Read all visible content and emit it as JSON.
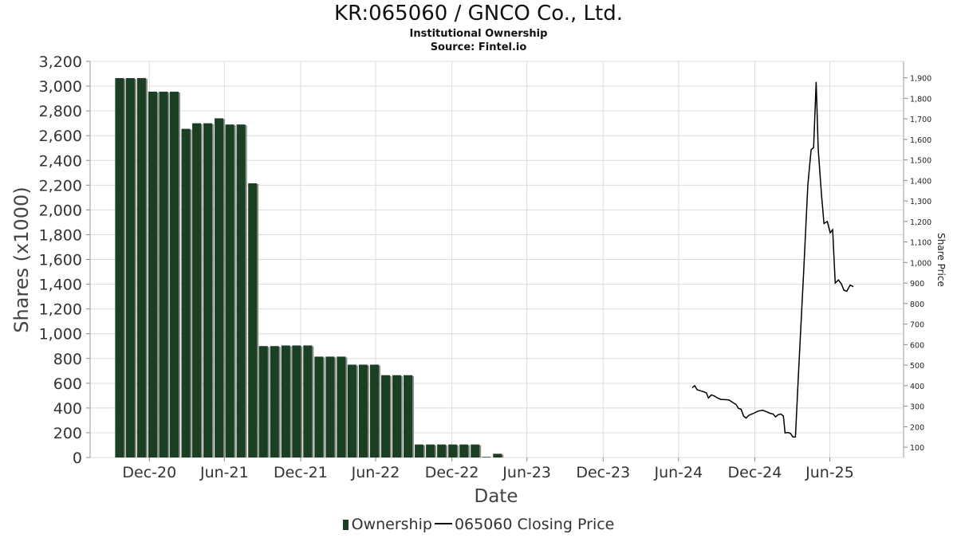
{
  "header": {
    "title": "KR:065060 / GNCO Co., Ltd.",
    "subtitle": "Institutional Ownership",
    "source": "Source: Fintel.io"
  },
  "legend": {
    "ownership": "Ownership",
    "price": "065060 Closing Price"
  },
  "colors": {
    "bar": "#1b3f22",
    "bar_shadow": "#8a8a8a",
    "price_line": "#000000",
    "grid": "#dcdcdc"
  },
  "chart_data": {
    "type": "bar",
    "xlabel": "Date",
    "ylabel": "Shares (x1000)",
    "y2label": "Share Price",
    "ylim": [
      0,
      3200
    ],
    "y2lim": [
      50,
      1980
    ],
    "yticks": [
      0,
      200,
      400,
      600,
      800,
      1000,
      1200,
      1400,
      1600,
      1800,
      2000,
      2200,
      2400,
      2600,
      2800,
      3000,
      3200
    ],
    "y2ticks": [
      100,
      200,
      300,
      400,
      500,
      600,
      700,
      800,
      900,
      1000,
      1100,
      1200,
      1300,
      1400,
      1500,
      1600,
      1700,
      1800,
      1900
    ],
    "xlim": [
      "2020-08-10",
      "2025-12-25"
    ],
    "xticks": [
      {
        "label": "Dec-20",
        "date": "2020-12-31"
      },
      {
        "label": "Jun-21",
        "date": "2021-06-30"
      },
      {
        "label": "Dec-21",
        "date": "2021-12-31"
      },
      {
        "label": "Jun-22",
        "date": "2022-06-30"
      },
      {
        "label": "Dec-22",
        "date": "2022-12-31"
      },
      {
        "label": "Jun-23",
        "date": "2023-06-30"
      },
      {
        "label": "Dec-23",
        "date": "2023-12-31"
      },
      {
        "label": "Jun-24",
        "date": "2024-06-30"
      },
      {
        "label": "Dec-24",
        "date": "2024-12-31"
      },
      {
        "label": "Jun-25",
        "date": "2025-06-30"
      }
    ],
    "grid": true,
    "legend_position": "bottom",
    "series": [
      {
        "name": "Ownership",
        "type": "bar",
        "axis": "left",
        "points": [
          {
            "date": "2020-10-20",
            "value": 3065
          },
          {
            "date": "2020-11-15",
            "value": 3065
          },
          {
            "date": "2020-12-12",
            "value": 3065
          },
          {
            "date": "2021-01-08",
            "value": 2955
          },
          {
            "date": "2021-02-03",
            "value": 2955
          },
          {
            "date": "2021-03-01",
            "value": 2955
          },
          {
            "date": "2021-03-29",
            "value": 2655
          },
          {
            "date": "2021-04-24",
            "value": 2700
          },
          {
            "date": "2021-05-21",
            "value": 2700
          },
          {
            "date": "2021-06-17",
            "value": 2740
          },
          {
            "date": "2021-07-13",
            "value": 2690
          },
          {
            "date": "2021-08-09",
            "value": 2690
          },
          {
            "date": "2021-09-06",
            "value": 2215
          },
          {
            "date": "2021-10-02",
            "value": 900
          },
          {
            "date": "2021-10-29",
            "value": 900
          },
          {
            "date": "2021-11-25",
            "value": 905
          },
          {
            "date": "2021-12-21",
            "value": 905
          },
          {
            "date": "2022-01-17",
            "value": 905
          },
          {
            "date": "2022-02-13",
            "value": 815
          },
          {
            "date": "2022-03-12",
            "value": 815
          },
          {
            "date": "2022-04-08",
            "value": 815
          },
          {
            "date": "2022-05-04",
            "value": 750
          },
          {
            "date": "2022-05-31",
            "value": 750
          },
          {
            "date": "2022-06-27",
            "value": 750
          },
          {
            "date": "2022-07-24",
            "value": 665
          },
          {
            "date": "2022-08-20",
            "value": 665
          },
          {
            "date": "2022-09-16",
            "value": 665
          },
          {
            "date": "2022-10-13",
            "value": 105
          },
          {
            "date": "2022-11-09",
            "value": 105
          },
          {
            "date": "2022-12-06",
            "value": 105
          },
          {
            "date": "2023-01-02",
            "value": 105
          },
          {
            "date": "2023-01-29",
            "value": 105
          },
          {
            "date": "2023-02-25",
            "value": 105
          },
          {
            "date": "2023-03-24",
            "value": 5
          },
          {
            "date": "2023-04-20",
            "value": 30
          }
        ]
      },
      {
        "name": "065060 Closing Price",
        "type": "line",
        "axis": "right",
        "points": [
          [
            "2024-08-02",
            390
          ],
          [
            "2024-08-08",
            400
          ],
          [
            "2024-08-14",
            380
          ],
          [
            "2024-08-22",
            375
          ],
          [
            "2024-08-30",
            370
          ],
          [
            "2024-09-05",
            365
          ],
          [
            "2024-09-10",
            340
          ],
          [
            "2024-09-17",
            355
          ],
          [
            "2024-09-24",
            350
          ],
          [
            "2024-10-02",
            340
          ],
          [
            "2024-10-10",
            333
          ],
          [
            "2024-10-20",
            332
          ],
          [
            "2024-10-30",
            330
          ],
          [
            "2024-11-08",
            318
          ],
          [
            "2024-11-16",
            308
          ],
          [
            "2024-11-21",
            290
          ],
          [
            "2024-11-28",
            285
          ],
          [
            "2024-12-04",
            252
          ],
          [
            "2024-12-10",
            242
          ],
          [
            "2024-12-16",
            255
          ],
          [
            "2024-12-28",
            265
          ],
          [
            "2025-01-08",
            276
          ],
          [
            "2025-01-19",
            280
          ],
          [
            "2025-01-27",
            274
          ],
          [
            "2025-02-06",
            265
          ],
          [
            "2025-02-13",
            262
          ],
          [
            "2025-02-19",
            248
          ],
          [
            "2025-02-25",
            258
          ],
          [
            "2025-03-04",
            262
          ],
          [
            "2025-03-10",
            252
          ],
          [
            "2025-03-14",
            170
          ],
          [
            "2025-03-20",
            172
          ],
          [
            "2025-03-27",
            168
          ],
          [
            "2025-04-02",
            150
          ],
          [
            "2025-04-08",
            150
          ],
          [
            "2025-04-16",
            480
          ],
          [
            "2025-04-28",
            960
          ],
          [
            "2025-05-08",
            1380
          ],
          [
            "2025-05-16",
            1550
          ],
          [
            "2025-05-22",
            1560
          ],
          [
            "2025-05-28",
            1880
          ],
          [
            "2025-06-02",
            1550
          ],
          [
            "2025-06-10",
            1330
          ],
          [
            "2025-06-16",
            1190
          ],
          [
            "2025-06-24",
            1200
          ],
          [
            "2025-07-01",
            1145
          ],
          [
            "2025-07-07",
            1160
          ],
          [
            "2025-07-13",
            900
          ],
          [
            "2025-07-21",
            915
          ],
          [
            "2025-07-28",
            895
          ],
          [
            "2025-08-03",
            865
          ],
          [
            "2025-08-10",
            860
          ],
          [
            "2025-08-18",
            890
          ],
          [
            "2025-08-26",
            882
          ]
        ]
      }
    ]
  }
}
